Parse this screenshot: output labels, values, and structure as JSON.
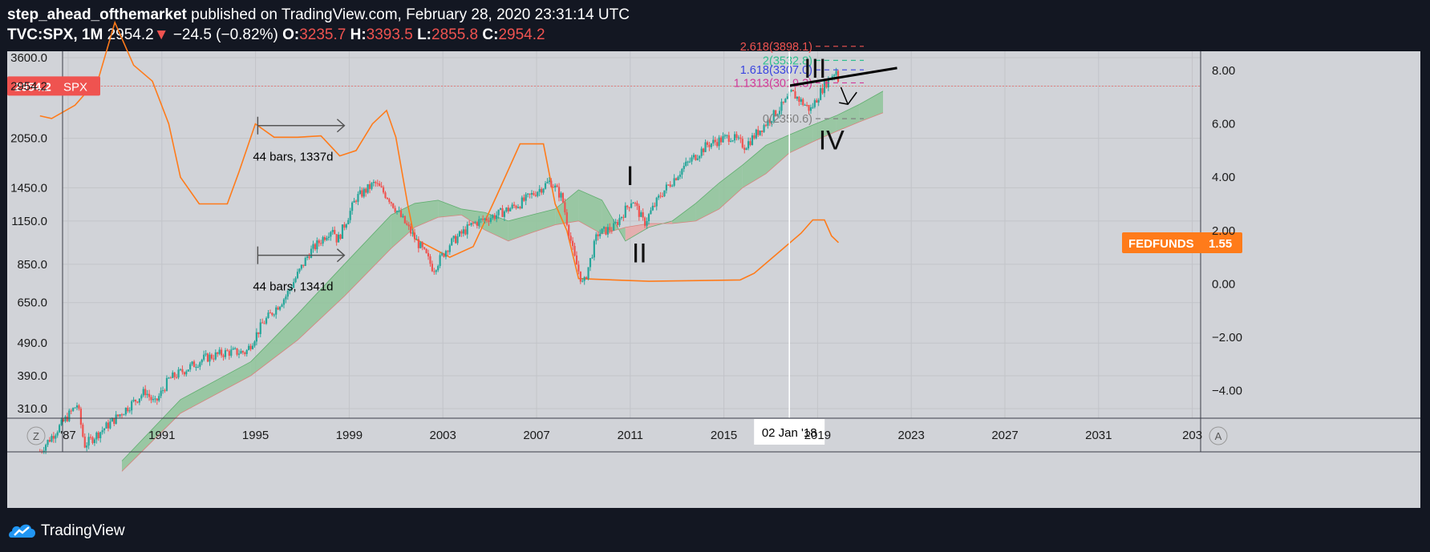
{
  "header": {
    "author": "step_ahead_ofthemarket",
    "published_text": " published on TradingView.com, February 28, 2020 23:31:14 UTC",
    "symbol": "TVC:SPX, 1M",
    "last": "2954.2",
    "change_arrow": "▼",
    "change": "−24.5 (−0.82%)",
    "open_label": "O:",
    "open": "3235.7",
    "high_label": "H:",
    "high": "3393.5",
    "low_label": "L:",
    "low": "2855.8",
    "close_label": "C:",
    "close": "2954.2"
  },
  "footer": {
    "brand": "TradingView",
    "logo_icon": "tradingview-cloud-icon"
  },
  "colors": {
    "bull": "#26a69a",
    "bear": "#ef5350",
    "fedfunds": "#ff7b1a",
    "cloud_bull": "#8fc49a",
    "cloud_bear": "#e8a8a8",
    "background": "#d1d3d8"
  },
  "chart_data": {
    "type": "line",
    "symbol": "SPX",
    "interval": "1M",
    "scale": "log",
    "grid": true,
    "x_ticks": [
      "'87",
      "1991",
      "1995",
      "1999",
      "2003",
      "2007",
      "2011",
      "2015",
      "2019",
      "2023",
      "2027",
      "2031",
      "203"
    ],
    "left_axis_ticks": [
      "3600.0",
      "2954.2",
      "2050.0",
      "1450.0",
      "1150.0",
      "850.0",
      "650.0",
      "490.0",
      "390.0",
      "310.0"
    ],
    "right_axis_ticks": [
      "8.00",
      "6.00",
      "4.00",
      "2.00",
      "0.00",
      "−2.00",
      "−4.00"
    ],
    "price_label": {
      "value": "2954.2",
      "symbol": "SPX"
    },
    "fedfunds_label": {
      "name": "FEDFUNDS",
      "value": "1.55"
    },
    "date_label": "02 Jan '18",
    "scale_buttons": [
      "Z",
      "A"
    ],
    "spx_monthly_close": [
      {
        "t": 1986.0,
        "v": 230
      },
      {
        "t": 1987.6,
        "v": 320
      },
      {
        "t": 1987.9,
        "v": 240
      },
      {
        "t": 1989.0,
        "v": 280
      },
      {
        "t": 1990.5,
        "v": 350
      },
      {
        "t": 1990.9,
        "v": 320
      },
      {
        "t": 1991.5,
        "v": 380
      },
      {
        "t": 1993.0,
        "v": 440
      },
      {
        "t": 1994.0,
        "v": 460
      },
      {
        "t": 1994.8,
        "v": 460
      },
      {
        "t": 1995.5,
        "v": 560
      },
      {
        "t": 1996.5,
        "v": 680
      },
      {
        "t": 1997.5,
        "v": 920
      },
      {
        "t": 1998.5,
        "v": 1100
      },
      {
        "t": 1998.7,
        "v": 1000
      },
      {
        "t": 1999.5,
        "v": 1350
      },
      {
        "t": 2000.3,
        "v": 1500
      },
      {
        "t": 2000.9,
        "v": 1350
      },
      {
        "t": 2001.7,
        "v": 1100
      },
      {
        "t": 2002.5,
        "v": 900
      },
      {
        "t": 2002.8,
        "v": 820
      },
      {
        "t": 2003.5,
        "v": 980
      },
      {
        "t": 2004.5,
        "v": 1130
      },
      {
        "t": 2005.5,
        "v": 1200
      },
      {
        "t": 2006.5,
        "v": 1300
      },
      {
        "t": 2007.8,
        "v": 1520
      },
      {
        "t": 2008.3,
        "v": 1350
      },
      {
        "t": 2008.8,
        "v": 900
      },
      {
        "t": 2009.2,
        "v": 730
      },
      {
        "t": 2009.8,
        "v": 1050
      },
      {
        "t": 2010.5,
        "v": 1100
      },
      {
        "t": 2011.3,
        "v": 1340
      },
      {
        "t": 2011.8,
        "v": 1130
      },
      {
        "t": 2012.5,
        "v": 1380
      },
      {
        "t": 2013.5,
        "v": 1680
      },
      {
        "t": 2014.5,
        "v": 1960
      },
      {
        "t": 2015.5,
        "v": 2080
      },
      {
        "t": 2016.1,
        "v": 1940
      },
      {
        "t": 2016.8,
        "v": 2200
      },
      {
        "t": 2017.8,
        "v": 2620
      },
      {
        "t": 2018.1,
        "v": 2820
      },
      {
        "t": 2018.9,
        "v": 2500
      },
      {
        "t": 2019.5,
        "v": 2980
      },
      {
        "t": 2020.0,
        "v": 3300
      },
      {
        "t": 2020.15,
        "v": 2954
      }
    ],
    "fedfunds": [
      {
        "t": 1986.0,
        "v": 6.3
      },
      {
        "t": 1986.5,
        "v": 6.2
      },
      {
        "t": 1987.5,
        "v": 6.7
      },
      {
        "t": 1988.5,
        "v": 7.7
      },
      {
        "t": 1989.2,
        "v": 9.8
      },
      {
        "t": 1990.0,
        "v": 8.2
      },
      {
        "t": 1990.8,
        "v": 7.6
      },
      {
        "t": 1991.5,
        "v": 6.0
      },
      {
        "t": 1992.0,
        "v": 4.0
      },
      {
        "t": 1992.8,
        "v": 3.0
      },
      {
        "t": 1993.5,
        "v": 3.0
      },
      {
        "t": 1994.0,
        "v": 3.0
      },
      {
        "t": 1994.5,
        "v": 4.2
      },
      {
        "t": 1995.2,
        "v": 6.0
      },
      {
        "t": 1996.0,
        "v": 5.5
      },
      {
        "t": 1997.0,
        "v": 5.5
      },
      {
        "t": 1998.0,
        "v": 5.55
      },
      {
        "t": 1998.8,
        "v": 4.8
      },
      {
        "t": 1999.5,
        "v": 5.0
      },
      {
        "t": 2000.2,
        "v": 6.0
      },
      {
        "t": 2000.8,
        "v": 6.5
      },
      {
        "t": 2001.2,
        "v": 5.5
      },
      {
        "t": 2001.7,
        "v": 3.0
      },
      {
        "t": 2002.0,
        "v": 1.7
      },
      {
        "t": 2003.5,
        "v": 1.0
      },
      {
        "t": 2004.5,
        "v": 1.4
      },
      {
        "t": 2005.5,
        "v": 3.3
      },
      {
        "t": 2006.5,
        "v": 5.25
      },
      {
        "t": 2007.5,
        "v": 5.25
      },
      {
        "t": 2008.0,
        "v": 3.0
      },
      {
        "t": 2008.5,
        "v": 2.0
      },
      {
        "t": 2009.0,
        "v": 0.2
      },
      {
        "t": 2012.0,
        "v": 0.1
      },
      {
        "t": 2015.9,
        "v": 0.15
      },
      {
        "t": 2016.5,
        "v": 0.4
      },
      {
        "t": 2017.5,
        "v": 1.15
      },
      {
        "t": 2018.5,
        "v": 1.9
      },
      {
        "t": 2019.0,
        "v": 2.4
      },
      {
        "t": 2019.5,
        "v": 2.4
      },
      {
        "t": 2019.8,
        "v": 1.8
      },
      {
        "t": 2020.1,
        "v": 1.55
      }
    ],
    "ichimoku_cloud": [
      {
        "t": 1989.5,
        "a": 215,
        "b": 200
      },
      {
        "t": 1992.0,
        "a": 330,
        "b": 300
      },
      {
        "t": 1995.0,
        "a": 430,
        "b": 390
      },
      {
        "t": 1997.0,
        "a": 600,
        "b": 500
      },
      {
        "t": 1999.0,
        "a": 850,
        "b": 680
      },
      {
        "t": 2001.0,
        "a": 1200,
        "b": 950
      },
      {
        "t": 2002.0,
        "a": 1300,
        "b": 1100
      },
      {
        "t": 2003.0,
        "a": 1330,
        "b": 1180
      },
      {
        "t": 2004.0,
        "a": 1250,
        "b": 1200
      },
      {
        "t": 2005.0,
        "a": 1220,
        "b": 1080
      },
      {
        "t": 2006.0,
        "a": 1150,
        "b": 1000
      },
      {
        "t": 2007.0,
        "a": 1200,
        "b": 1060
      },
      {
        "t": 2008.0,
        "a": 1250,
        "b": 1120
      },
      {
        "t": 2009.0,
        "a": 1430,
        "b": 1150
      },
      {
        "t": 2010.0,
        "a": 1330,
        "b": 1050
      },
      {
        "t": 2011.0,
        "a": 1000,
        "b": 1100
      },
      {
        "t": 2012.0,
        "a": 1100,
        "b": 1130
      },
      {
        "t": 2013.0,
        "a": 1150,
        "b": 1130
      },
      {
        "t": 2014.0,
        "a": 1300,
        "b": 1150
      },
      {
        "t": 2015.0,
        "a": 1500,
        "b": 1250
      },
      {
        "t": 2016.0,
        "a": 1700,
        "b": 1450
      },
      {
        "t": 2017.0,
        "a": 1950,
        "b": 1600
      },
      {
        "t": 2018.0,
        "a": 2100,
        "b": 1850
      },
      {
        "t": 2019.0,
        "a": 2250,
        "b": 2000
      },
      {
        "t": 2020.0,
        "a": 2400,
        "b": 2150
      },
      {
        "t": 2021.0,
        "a": 2600,
        "b": 2300
      },
      {
        "t": 2022.0,
        "a": 2850,
        "b": 2450
      }
    ],
    "annotations": {
      "wave_labels": [
        {
          "text": "I",
          "t": 2011.2,
          "v": 1580
        },
        {
          "text": "II",
          "t": 2011.6,
          "v": 920
        },
        {
          "text": "III",
          "t": 2019.1,
          "v": 3350
        },
        {
          "text": "IV",
          "t": 2019.8,
          "v": 2030
        }
      ],
      "fib_levels": [
        {
          "text": "2.618(3898.1)",
          "v": 3898.1,
          "color": "#ef5350"
        },
        {
          "text": "2(3532.8)",
          "v": 3532.8,
          "color": "#2fbf8f"
        },
        {
          "text": "1.618(3307.0)",
          "v": 3307.0,
          "color": "#3a45e0"
        },
        {
          "text": "1.1313(3019.3)",
          "v": 3019.3,
          "color": "#d03a9a"
        },
        {
          "text": "0(2350.6)",
          "v": 2350.6,
          "color": "#808080"
        }
      ],
      "measures": [
        {
          "text": "44 bars, 1337d",
          "t1": 1995.3,
          "t2": 1999.0,
          "v": 2240
        },
        {
          "text": "44 bars, 1341d",
          "t1": 1995.3,
          "t2": 1999.0,
          "v": 905
        }
      ],
      "trendline": {
        "t1": 2018.0,
        "v1": 2960,
        "t2": 2022.6,
        "v2": 3350
      },
      "down_arrow": {
        "t1": 2020.2,
        "v1": 2930,
        "t2": 2020.5,
        "v2": 2600
      }
    }
  }
}
